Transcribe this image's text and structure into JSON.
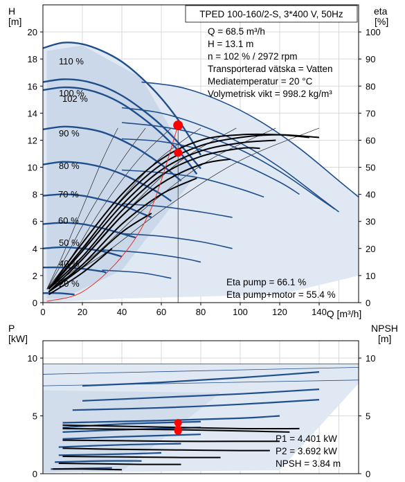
{
  "chart_data": [
    {
      "type": "line",
      "title": "TPED 100-160/2-S, 3*400 V, 50Hz",
      "xlabel": "Q [m³/h]",
      "ylabel": "H [m]",
      "y2label": "eta [%]",
      "ylabel_lines": [
        "H",
        "[m]"
      ],
      "y2label_lines": [
        "eta",
        "[%]"
      ],
      "xlim": [
        0,
        160
      ],
      "ylim": [
        0,
        22
      ],
      "y2lim": [
        0,
        110
      ],
      "xticks": [
        0,
        20,
        40,
        60,
        80,
        100,
        120,
        140
      ],
      "yticks": [
        0,
        2,
        4,
        6,
        8,
        10,
        12,
        14,
        16,
        18,
        20
      ],
      "y2ticks": [
        0,
        10,
        20,
        30,
        40,
        50,
        60,
        70,
        80,
        90,
        100
      ],
      "grid": true,
      "head_curves": [
        {
          "label": "110 %",
          "x": [
            0,
            10,
            20,
            30,
            40,
            50,
            60,
            70,
            80
          ],
          "y": [
            18.8,
            19.2,
            19.1,
            18.6,
            17.8,
            16.6,
            15.1,
            13.2,
            10.9
          ]
        },
        {
          "label": "100 %",
          "x": [
            0,
            10,
            20,
            30,
            40,
            50,
            60,
            70,
            78
          ],
          "y": [
            15.7,
            15.9,
            15.8,
            15.4,
            14.7,
            13.7,
            12.5,
            11.0,
            9.5
          ]
        },
        {
          "label": "102 %",
          "x": [
            0,
            10,
            20,
            30,
            40,
            50,
            60,
            70,
            80
          ],
          "y": [
            16.3,
            16.5,
            16.4,
            16.0,
            15.3,
            14.3,
            13.1,
            11.6,
            9.9
          ]
        },
        {
          "label": "90 %",
          "x": [
            0,
            10,
            20,
            30,
            40,
            50,
            60,
            70
          ],
          "y": [
            12.8,
            13.0,
            12.9,
            12.6,
            12.0,
            11.2,
            10.2,
            9.0
          ]
        },
        {
          "label": "80 %",
          "x": [
            0,
            10,
            20,
            30,
            40,
            50,
            60,
            65
          ],
          "y": [
            10.2,
            10.4,
            10.3,
            10.0,
            9.5,
            8.8,
            8.0,
            7.5
          ]
        },
        {
          "label": "70 %",
          "x": [
            0,
            10,
            20,
            30,
            40,
            50,
            55
          ],
          "y": [
            7.9,
            8.0,
            7.9,
            7.6,
            7.2,
            6.6,
            6.3
          ]
        },
        {
          "label": "60 %",
          "x": [
            0,
            10,
            20,
            30,
            40,
            47
          ],
          "y": [
            5.8,
            5.9,
            5.8,
            5.5,
            5.1,
            4.8
          ]
        },
        {
          "label": "50 %",
          "x": [
            0,
            10,
            20,
            30,
            40
          ],
          "y": [
            4.0,
            4.1,
            4.0,
            3.8,
            3.4
          ]
        },
        {
          "label": "40 %",
          "x": [
            0,
            10,
            20,
            30,
            32
          ],
          "y": [
            2.6,
            2.6,
            2.5,
            2.3,
            2.2
          ]
        },
        {
          "label": "20 %",
          "x": [
            0,
            8,
            16
          ],
          "y": [
            0.7,
            0.7,
            0.6
          ]
        }
      ],
      "extra_curves": [
        {
          "x": [
            50,
            70,
            90,
            110,
            130,
            150,
            160
          ],
          "y": [
            16.3,
            15.9,
            14.9,
            13.4,
            11.4,
            9.0,
            7.8
          ]
        },
        {
          "x": [
            40,
            60,
            80,
            100,
            120,
            140,
            150
          ],
          "y": [
            14.4,
            14.0,
            13.1,
            11.8,
            10.0,
            7.8,
            6.7
          ]
        },
        {
          "x": [
            40,
            60,
            80,
            100,
            120,
            140,
            148
          ],
          "y": [
            13.3,
            13.0,
            12.4,
            11.3,
            9.7,
            7.7,
            6.9
          ]
        },
        {
          "x": [
            40,
            60,
            80,
            100,
            120,
            130
          ],
          "y": [
            12.1,
            11.9,
            11.3,
            10.3,
            8.9,
            8.0
          ]
        },
        {
          "x": [
            40,
            60,
            80,
            100,
            112
          ],
          "y": [
            9.8,
            9.6,
            9.2,
            8.4,
            7.8
          ]
        },
        {
          "x": [
            40,
            60,
            80,
            96
          ],
          "y": [
            7.3,
            7.1,
            6.7,
            6.3
          ]
        },
        {
          "x": [
            40,
            60,
            80,
            96
          ],
          "y": [
            5.1,
            4.9,
            4.5,
            4.0
          ]
        },
        {
          "x": [
            30,
            50,
            70,
            80
          ],
          "y": [
            3.9,
            3.7,
            3.3,
            3.0
          ]
        },
        {
          "x": [
            30,
            50,
            65
          ],
          "y": [
            2.4,
            2.2,
            1.8
          ]
        }
      ],
      "eta_curves": [
        {
          "x": [
            3,
            20,
            40,
            60,
            80,
            100,
            120,
            135
          ],
          "y": [
            5,
            22,
            40,
            53,
            60,
            62,
            62,
            61
          ]
        },
        {
          "x": [
            3,
            20,
            40,
            60,
            80,
            100,
            120,
            140
          ],
          "y": [
            5,
            20,
            38,
            51,
            58,
            61,
            62,
            61
          ]
        },
        {
          "x": [
            3,
            20,
            40,
            60,
            80,
            100,
            118
          ],
          "y": [
            5,
            19,
            36,
            49,
            56,
            59,
            60
          ]
        },
        {
          "x": [
            3,
            20,
            40,
            60,
            80,
            100,
            110
          ],
          "y": [
            5,
            17,
            34,
            47,
            54,
            57,
            57
          ]
        },
        {
          "x": [
            3,
            20,
            40,
            60,
            80,
            95
          ],
          "y": [
            4,
            16,
            32,
            44,
            51,
            53
          ]
        },
        {
          "x": [
            3,
            20,
            40,
            60,
            78
          ],
          "y": [
            4,
            14,
            29,
            40,
            46
          ]
        },
        {
          "x": [
            3,
            20,
            40,
            55
          ],
          "y": [
            4,
            13,
            26,
            33
          ]
        },
        {
          "x": [
            3,
            20,
            35
          ],
          "y": [
            3,
            11,
            20
          ]
        }
      ],
      "thin_curves": [
        {
          "x": [
            2,
            10,
            20,
            30,
            38
          ],
          "y": [
            1,
            3.5,
            7,
            10.5,
            12.9
          ]
        },
        {
          "x": [
            2,
            12,
            25,
            40,
            52
          ],
          "y": [
            1,
            3.5,
            7,
            10.5,
            12.9
          ]
        },
        {
          "x": [
            2,
            15,
            30,
            48,
            65
          ],
          "y": [
            1,
            3.5,
            7,
            10.5,
            12.9
          ]
        },
        {
          "x": [
            2,
            18,
            36,
            58,
            80
          ],
          "y": [
            1,
            3.5,
            7,
            10.5,
            12.9
          ]
        },
        {
          "x": [
            2,
            22,
            44,
            70,
            98
          ],
          "y": [
            1,
            3.5,
            7,
            10.5,
            12.9
          ]
        },
        {
          "x": [
            2,
            26,
            52,
            84,
            118
          ],
          "y": [
            1,
            3.5,
            7,
            10.5,
            12.9
          ]
        },
        {
          "x": [
            2,
            30,
            62,
            100,
            140
          ],
          "y": [
            1,
            3.5,
            7,
            10.5,
            12.9
          ]
        }
      ],
      "system_curve": {
        "x": [
          2,
          20,
          40,
          55,
          68.5
        ],
        "y": [
          0.1,
          0.8,
          3.4,
          7.0,
          13.1
        ]
      },
      "duty_point": {
        "q": 68.5,
        "h": 13.1
      },
      "eta_point": {
        "q": 68.5,
        "eta": 55.4
      },
      "info_lines": [
        "Q = 68.5 m³/h",
        "H = 13.1 m",
        "n = 102 % / 2972 rpm",
        "Transporterad vätska = Vatten",
        "Mediatemperatur = 20 °C",
        "Volymetrisk vikt = 998.2 kg/m³"
      ],
      "eta_lines": [
        "Eta pump = 66.1 %",
        "Eta pump+motor = 55.4 %"
      ],
      "colors": {
        "curve": "#1f4e8c",
        "eta": "#000000",
        "region": "#dfe8f3",
        "region_dark": "#c8d5e6",
        "point": "#ff0000"
      }
    },
    {
      "type": "line",
      "xlabel": "",
      "ylabel": "P [kW]",
      "y2label": "NPSH [m]",
      "ylabel_lines": [
        "P",
        "[kW]"
      ],
      "y2label_lines": [
        "NPSH",
        "[m]"
      ],
      "xlim": [
        0,
        160
      ],
      "ylim": [
        0,
        11.5
      ],
      "y2lim": [
        0,
        11.5
      ],
      "yticks": [
        0,
        5,
        10
      ],
      "y2ticks": [
        0,
        5,
        10
      ],
      "grid": true,
      "power_curves": [
        {
          "x": [
            20,
            60,
            100,
            140
          ],
          "y": [
            7.6,
            7.9,
            8.3,
            8.8
          ]
        },
        {
          "x": [
            20,
            60,
            100,
            140
          ],
          "y": [
            6.3,
            6.6,
            6.9,
            7.3
          ]
        },
        {
          "x": [
            15,
            60,
            100,
            140
          ],
          "y": [
            5.5,
            5.7,
            6.0,
            6.4
          ]
        },
        {
          "x": [
            10,
            60,
            100,
            120
          ],
          "y": [
            4.4,
            4.6,
            4.8,
            5.0
          ]
        },
        {
          "x": [
            10,
            40,
            80
          ],
          "y": [
            4.0,
            4.3,
            4.5
          ]
        },
        {
          "x": [
            10,
            40,
            80
          ],
          "y": [
            3.6,
            3.8,
            4.0
          ]
        },
        {
          "x": [
            10,
            40,
            80
          ],
          "y": [
            3.0,
            3.2,
            3.4
          ]
        },
        {
          "x": [
            8,
            40,
            70
          ],
          "y": [
            2.3,
            2.5,
            2.6
          ]
        },
        {
          "x": [
            8,
            40,
            60
          ],
          "y": [
            1.6,
            1.7,
            1.8
          ]
        },
        {
          "x": [
            6,
            30,
            50
          ],
          "y": [
            1.0,
            1.1,
            1.1
          ]
        },
        {
          "x": [
            4,
            20,
            35
          ],
          "y": [
            0.4,
            0.45,
            0.5
          ]
        }
      ],
      "npsh_curves": [
        {
          "x": [
            10,
            40,
            70,
            100,
            130
          ],
          "y": [
            4.2,
            4.1,
            4.0,
            3.9,
            3.9
          ]
        },
        {
          "x": [
            10,
            40,
            70,
            100,
            125
          ],
          "y": [
            3.9,
            3.85,
            3.8,
            3.7,
            3.6
          ]
        },
        {
          "x": [
            10,
            40,
            70,
            100,
            120
          ],
          "y": [
            2.9,
            2.85,
            2.8,
            2.8,
            2.8
          ]
        },
        {
          "x": [
            10,
            40,
            70,
            100,
            115
          ],
          "y": [
            2.2,
            2.1,
            2.05,
            2.0,
            2.0
          ]
        },
        {
          "x": [
            10,
            40,
            70,
            90
          ],
          "y": [
            1.5,
            1.45,
            1.4,
            1.4
          ]
        },
        {
          "x": [
            8,
            30,
            50,
            70
          ],
          "y": [
            0.9,
            0.85,
            0.8,
            0.8
          ]
        },
        {
          "x": [
            5,
            20,
            40
          ],
          "y": [
            0.4,
            0.4,
            0.35
          ]
        }
      ],
      "points": [
        {
          "q": 68.5,
          "value": 4.401
        },
        {
          "q": 68.5,
          "value": 3.84
        },
        {
          "q": 68.5,
          "value": 3.692
        }
      ],
      "info_lines": [
        "P1 = 4.401 kW",
        "P2 = 3.692 kW",
        "NPSH = 3.84 m"
      ]
    }
  ]
}
